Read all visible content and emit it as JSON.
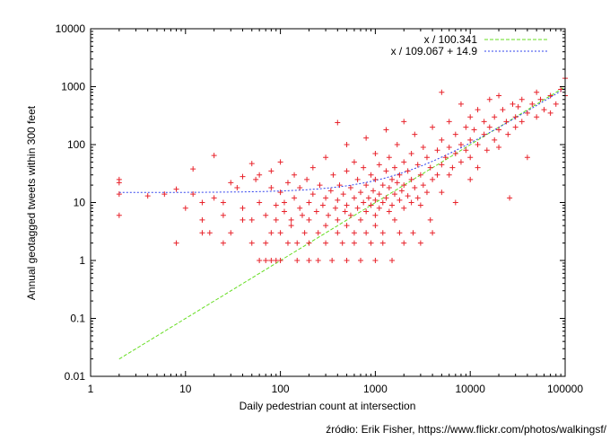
{
  "chart_data": {
    "type": "scatter",
    "xlabel": "Daily pedestrian count at intersection",
    "ylabel": "Annual geotagged tweets within 300 feet",
    "xscale": "log",
    "yscale": "log",
    "xlim": [
      1,
      100000
    ],
    "ylim": [
      0.01,
      10000
    ],
    "x_ticks": [
      "1",
      "10",
      "100",
      "1000",
      "10000",
      "100000"
    ],
    "y_ticks": [
      "0.01",
      "0.1",
      "1",
      "10",
      "100",
      "1000",
      "10000"
    ],
    "grid": false,
    "legend_placement": "top-right",
    "marker_color": "#e8232b",
    "fit_lines": [
      {
        "name": "x / 100.341",
        "slope_divisor": 100.341,
        "intercept": 0,
        "color": "#66dd22",
        "style": "dashed",
        "x_range": [
          2,
          100000
        ]
      },
      {
        "name": "x / 109.067 + 14.9",
        "slope_divisor": 109.067,
        "intercept": 14.9,
        "color": "#3344ee",
        "style": "dotted",
        "x_range": [
          2,
          100000
        ]
      }
    ],
    "points": [
      [
        2,
        25
      ],
      [
        2,
        22
      ],
      [
        2,
        14
      ],
      [
        2,
        6
      ],
      [
        4,
        13
      ],
      [
        6,
        14
      ],
      [
        8,
        17
      ],
      [
        8,
        2
      ],
      [
        10,
        8
      ],
      [
        12,
        38
      ],
      [
        12,
        14
      ],
      [
        15,
        10
      ],
      [
        15,
        5
      ],
      [
        15,
        3
      ],
      [
        18,
        3
      ],
      [
        20,
        65
      ],
      [
        20,
        12
      ],
      [
        25,
        10
      ],
      [
        25,
        6
      ],
      [
        25,
        2
      ],
      [
        30,
        22
      ],
      [
        30,
        3
      ],
      [
        35,
        18
      ],
      [
        40,
        28
      ],
      [
        40,
        8
      ],
      [
        40,
        5
      ],
      [
        50,
        47
      ],
      [
        50,
        5
      ],
      [
        50,
        2
      ],
      [
        55,
        25
      ],
      [
        60,
        30
      ],
      [
        60,
        10
      ],
      [
        60,
        1
      ],
      [
        70,
        1
      ],
      [
        70,
        2
      ],
      [
        70,
        6
      ],
      [
        80,
        18
      ],
      [
        80,
        3
      ],
      [
        80,
        1
      ],
      [
        80,
        35
      ],
      [
        90,
        1
      ],
      [
        90,
        9
      ],
      [
        90,
        5
      ],
      [
        100,
        50
      ],
      [
        100,
        15
      ],
      [
        100,
        3
      ],
      [
        100,
        1
      ],
      [
        110,
        10
      ],
      [
        110,
        7
      ],
      [
        120,
        22
      ],
      [
        120,
        2
      ],
      [
        130,
        5
      ],
      [
        130,
        4
      ],
      [
        140,
        30
      ],
      [
        140,
        12
      ],
      [
        150,
        2
      ],
      [
        150,
        1
      ],
      [
        160,
        18
      ],
      [
        160,
        8
      ],
      [
        170,
        6
      ],
      [
        180,
        3
      ],
      [
        190,
        25
      ],
      [
        200,
        10
      ],
      [
        200,
        5
      ],
      [
        200,
        2
      ],
      [
        200,
        1
      ],
      [
        220,
        40
      ],
      [
        220,
        14
      ],
      [
        240,
        7
      ],
      [
        250,
        3
      ],
      [
        250,
        1
      ],
      [
        260,
        20
      ],
      [
        280,
        9
      ],
      [
        300,
        60
      ],
      [
        300,
        12
      ],
      [
        300,
        4
      ],
      [
        300,
        2
      ],
      [
        320,
        6
      ],
      [
        340,
        16
      ],
      [
        350,
        1
      ],
      [
        360,
        30
      ],
      [
        380,
        8
      ],
      [
        400,
        240
      ],
      [
        400,
        11
      ],
      [
        400,
        5
      ],
      [
        400,
        3
      ],
      [
        420,
        20
      ],
      [
        450,
        2
      ],
      [
        460,
        14
      ],
      [
        480,
        7
      ],
      [
        500,
        100
      ],
      [
        500,
        35
      ],
      [
        500,
        9
      ],
      [
        500,
        4
      ],
      [
        500,
        1
      ],
      [
        550,
        18
      ],
      [
        550,
        6
      ],
      [
        600,
        50
      ],
      [
        600,
        12
      ],
      [
        600,
        3
      ],
      [
        600,
        2
      ],
      [
        650,
        25
      ],
      [
        650,
        8
      ],
      [
        700,
        15
      ],
      [
        700,
        5
      ],
      [
        700,
        1
      ],
      [
        750,
        40
      ],
      [
        750,
        10
      ],
      [
        800,
        130
      ],
      [
        800,
        20
      ],
      [
        800,
        7
      ],
      [
        800,
        3
      ],
      [
        850,
        12
      ],
      [
        900,
        30
      ],
      [
        900,
        9
      ],
      [
        900,
        2
      ],
      [
        950,
        16
      ],
      [
        1000,
        70
      ],
      [
        1000,
        25
      ],
      [
        1000,
        11
      ],
      [
        1000,
        6
      ],
      [
        1000,
        4
      ],
      [
        1000,
        1
      ],
      [
        1100,
        45
      ],
      [
        1100,
        14
      ],
      [
        1100,
        8
      ],
      [
        1200,
        20
      ],
      [
        1200,
        10
      ],
      [
        1200,
        3
      ],
      [
        1200,
        2
      ],
      [
        1300,
        180
      ],
      [
        1300,
        35
      ],
      [
        1300,
        12
      ],
      [
        1400,
        60
      ],
      [
        1400,
        18
      ],
      [
        1400,
        7
      ],
      [
        1500,
        25
      ],
      [
        1500,
        9
      ],
      [
        1500,
        1
      ],
      [
        1600,
        40
      ],
      [
        1600,
        14
      ],
      [
        1600,
        5
      ],
      [
        1700,
        100
      ],
      [
        1700,
        22
      ],
      [
        1800,
        30
      ],
      [
        1800,
        11
      ],
      [
        1800,
        3
      ],
      [
        1900,
        16
      ],
      [
        2000,
        250
      ],
      [
        2000,
        50
      ],
      [
        2000,
        20
      ],
      [
        2000,
        8
      ],
      [
        2000,
        2
      ],
      [
        2200,
        35
      ],
      [
        2200,
        13
      ],
      [
        2400,
        70
      ],
      [
        2400,
        25
      ],
      [
        2400,
        10
      ],
      [
        2500,
        3
      ],
      [
        2600,
        150
      ],
      [
        2600,
        18
      ],
      [
        2800,
        45
      ],
      [
        2800,
        12
      ],
      [
        3000,
        30
      ],
      [
        3000,
        9
      ],
      [
        3000,
        2
      ],
      [
        3200,
        90
      ],
      [
        3200,
        20
      ],
      [
        3500,
        60
      ],
      [
        3500,
        15
      ],
      [
        3800,
        40
      ],
      [
        3800,
        5
      ],
      [
        4000,
        200
      ],
      [
        4000,
        25
      ],
      [
        4000,
        3
      ],
      [
        4500,
        80
      ],
      [
        4500,
        30
      ],
      [
        5000,
        800
      ],
      [
        5000,
        120
      ],
      [
        5000,
        45
      ],
      [
        5000,
        15
      ],
      [
        5500,
        60
      ],
      [
        6000,
        250
      ],
      [
        6000,
        90
      ],
      [
        6000,
        30
      ],
      [
        6500,
        40
      ],
      [
        7000,
        150
      ],
      [
        7000,
        70
      ],
      [
        7000,
        10
      ],
      [
        8000,
        500
      ],
      [
        8000,
        100
      ],
      [
        8000,
        50
      ],
      [
        9000,
        200
      ],
      [
        9000,
        80
      ],
      [
        10000,
        300
      ],
      [
        10000,
        120
      ],
      [
        10000,
        60
      ],
      [
        10000,
        25
      ],
      [
        11000,
        180
      ],
      [
        12000,
        400
      ],
      [
        12000,
        100
      ],
      [
        12000,
        40
      ],
      [
        14000,
        250
      ],
      [
        14000,
        150
      ],
      [
        15000,
        80
      ],
      [
        16000,
        600
      ],
      [
        16000,
        200
      ],
      [
        18000,
        120
      ],
      [
        18000,
        300
      ],
      [
        20000,
        700
      ],
      [
        20000,
        180
      ],
      [
        20000,
        90
      ],
      [
        22000,
        400
      ],
      [
        24000,
        250
      ],
      [
        25000,
        150
      ],
      [
        26000,
        12
      ],
      [
        28000,
        500
      ],
      [
        30000,
        300
      ],
      [
        30000,
        200
      ],
      [
        32000,
        450
      ],
      [
        35000,
        600
      ],
      [
        35000,
        250
      ],
      [
        40000,
        350
      ],
      [
        40000,
        60
      ],
      [
        45000,
        500
      ],
      [
        50000,
        800
      ],
      [
        50000,
        300
      ],
      [
        55000,
        600
      ],
      [
        60000,
        400
      ],
      [
        70000,
        700
      ],
      [
        70000,
        350
      ],
      [
        80000,
        500
      ],
      [
        90000,
        900
      ],
      [
        100000,
        1400
      ],
      [
        100000,
        700
      ]
    ]
  },
  "caption": "źródło: Erik Fisher, https://www.flickr.com/photos/walkingsf/"
}
